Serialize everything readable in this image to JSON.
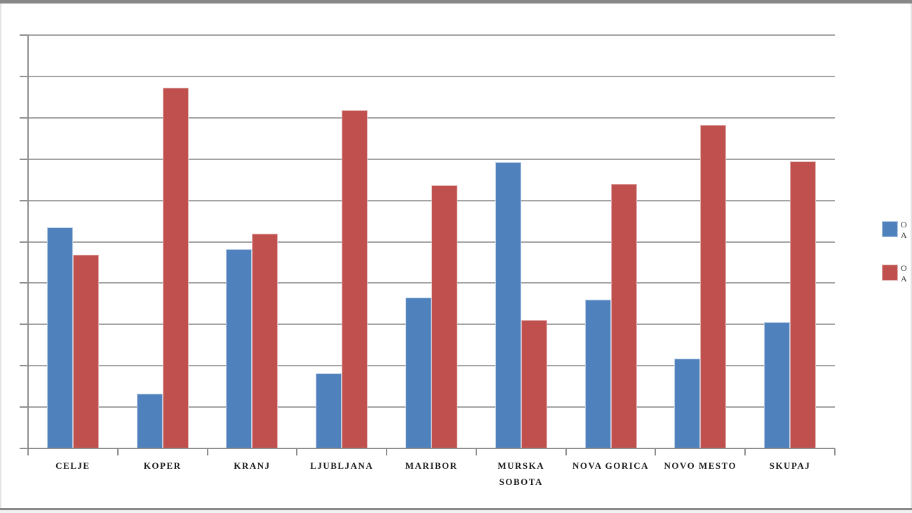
{
  "chart_data": {
    "type": "bar",
    "title": "",
    "xlabel": "",
    "ylabel": "",
    "categories": [
      "CELJE",
      "KOPER",
      "KRANJ",
      "LJUBLJANA",
      "MARIBOR",
      "MURSKA SOBOTA",
      "NOVA GORICA",
      "NOVO MESTO",
      "SKUPAJ"
    ],
    "series": [
      {
        "name": "series-1-blue",
        "color": "#4f81bd",
        "border_color": "#bdcfe7",
        "legend_visible_text_lines": [
          "O",
          "A"
        ],
        "values": [
          53.4,
          13.2,
          48.2,
          18.2,
          36.5,
          69.2,
          36.0,
          21.8,
          30.6
        ]
      },
      {
        "name": "series-2-red",
        "color": "#c0504d",
        "border_color": "#e2b6b5",
        "legend_visible_text_lines": [
          "O",
          "A"
        ],
        "values": [
          46.9,
          87.3,
          52.0,
          81.8,
          63.7,
          31.1,
          64.0,
          78.3,
          69.4
        ]
      }
    ],
    "ylim": [
      0,
      100
    ],
    "gridline_step": 10,
    "y_tick_labels_visible": false,
    "grid": true,
    "legend_position": "right",
    "legend_truncated_by_image_edge": true
  },
  "colors": {
    "gridline": "#a3a3a3",
    "axis": "#8f8f8f",
    "top_bar": "#888888",
    "label_text": "#1a1a1a"
  }
}
